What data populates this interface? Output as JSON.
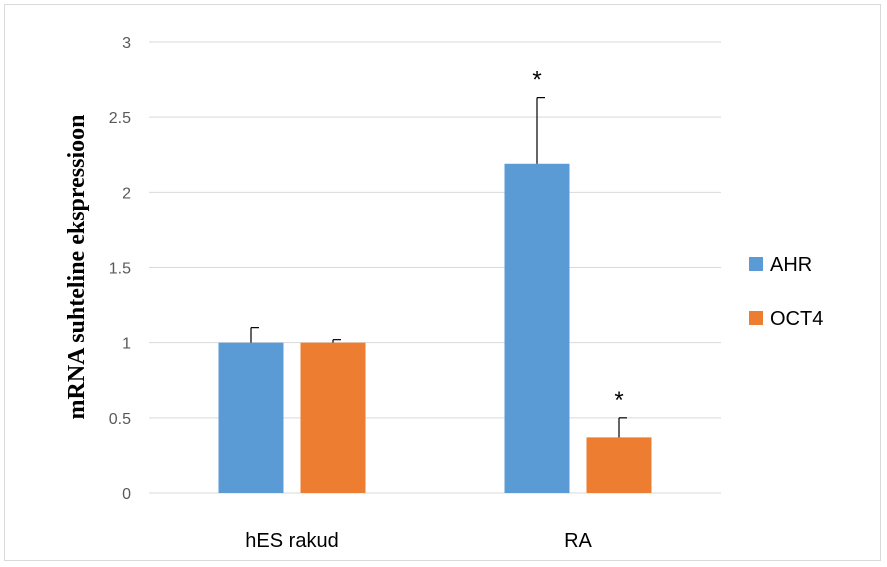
{
  "chart_data": {
    "type": "bar",
    "title": "",
    "xlabel": "",
    "ylabel": "mRNA suhteline ekspressioon",
    "ylim": [
      0,
      3
    ],
    "yticks": [
      0,
      0.5,
      1,
      1.5,
      2,
      2.5,
      3
    ],
    "ytick_labels": [
      "0",
      "0.5",
      "1",
      "1.5",
      "2",
      "2.5",
      "3"
    ],
    "grid": true,
    "legend_position": "right",
    "categories": [
      "hES rakud",
      "RA"
    ],
    "series": [
      {
        "name": "AHR",
        "color": "#5b9bd5",
        "values": [
          1.0,
          2.19
        ],
        "error": [
          0.1,
          0.44
        ],
        "annotations": [
          "",
          "*"
        ]
      },
      {
        "name": "OCT4",
        "color": "#ed7d31",
        "values": [
          1.0,
          0.37
        ],
        "error": [
          0.02,
          0.13
        ],
        "annotations": [
          "",
          "*"
        ]
      }
    ]
  }
}
